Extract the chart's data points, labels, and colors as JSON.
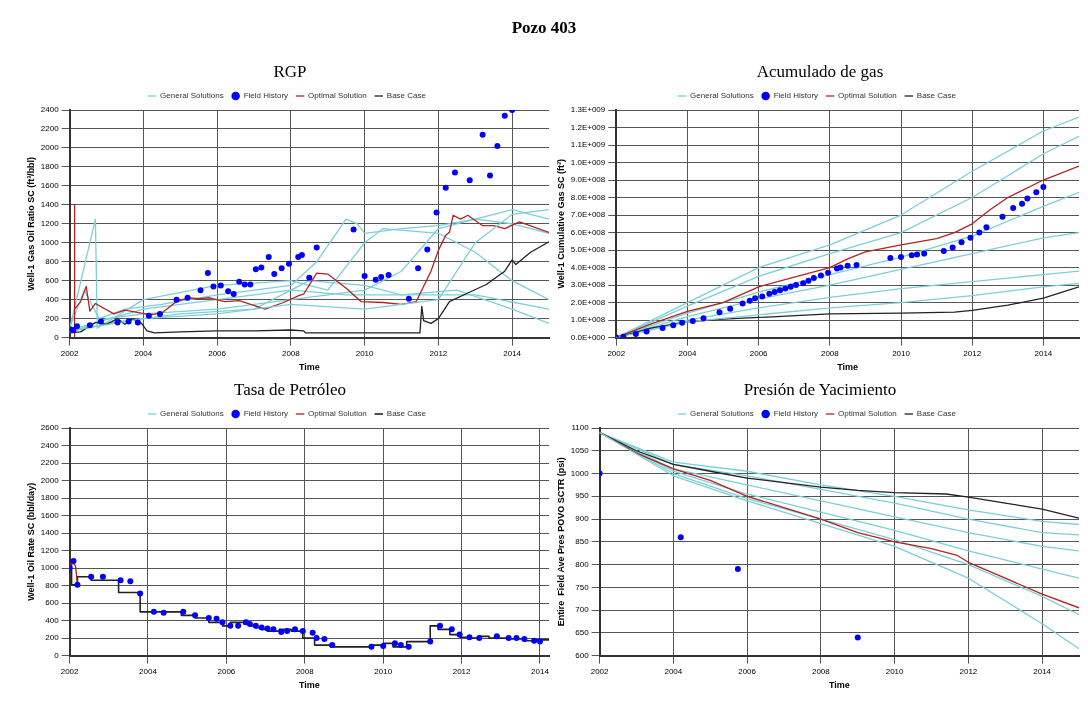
{
  "chart_data": [
    {
      "type": "line",
      "title": "RGP",
      "annotations": [
        "Pozo 403"
      ],
      "xlabel": "Time",
      "ylabel": "Well-1 Gas Oil Ratio SC (ft³/bbl)",
      "xlim": [
        2002,
        2015
      ],
      "xticks": [
        2002,
        2004,
        2006,
        2008,
        2010,
        2012,
        2014
      ],
      "ylim": [
        0,
        2400
      ],
      "yticks": [
        0,
        200,
        400,
        600,
        800,
        1000,
        1200,
        1400,
        1600,
        1800,
        2000,
        2200,
        2400
      ],
      "grid": true,
      "legend": "top",
      "series": [
        {
          "name": "General Solutions",
          "color": "#7ccfd8",
          "x": [
            2002,
            2004,
            2006,
            2008,
            2010,
            2012,
            2013,
            2014,
            2015
          ],
          "values": [
            70,
            200,
            250,
            350,
            300,
            400,
            1000,
            1300,
            1350
          ]
        },
        {
          "name": "Field History",
          "type": "scatter",
          "marker": "circle",
          "color": "#0000ff",
          "x": [
            2002,
            2002.1,
            2002.2,
            2002.55,
            2002.85,
            2003.3,
            2003.6,
            2003.85,
            2004.15,
            2004.45,
            2004.9,
            2005.2,
            2005.55,
            2005.75,
            2005.9,
            2006.1,
            2006.3,
            2006.45,
            2006.6,
            2006.75,
            2006.9,
            2007.05,
            2007.2,
            2007.4,
            2007.55,
            2007.75,
            2007.95,
            2008.2,
            2008.3,
            2008.5,
            2008.7,
            2009.7,
            2010,
            2010.3,
            2010.45,
            2010.65,
            2011.2,
            2011.45,
            2011.7,
            2011.95,
            2012.2,
            2012.45,
            2012.85,
            2013.2,
            2013.4,
            2013.6,
            2013.8,
            2014
          ],
          "values": [
            90,
            80,
            120,
            130,
            170,
            160,
            170,
            160,
            230,
            250,
            400,
            420,
            500,
            680,
            540,
            550,
            490,
            460,
            590,
            560,
            560,
            720,
            740,
            850,
            670,
            730,
            780,
            850,
            870,
            630,
            950,
            1140,
            650,
            610,
            640,
            660,
            410,
            730,
            930,
            1320,
            1580,
            1740,
            1660,
            2140,
            1710,
            2020,
            2340,
            2400
          ]
        },
        {
          "name": "Optimal Solution",
          "color": "#b22222",
          "x": [
            2002.12,
            2002.13,
            2002.14,
            2002.3,
            2002.45,
            2002.55,
            2002.7,
            2003.2,
            2003.5,
            2004.2,
            2004.5,
            2004.9,
            2005.2,
            2005.5,
            2005.8,
            2006.2,
            2006.6,
            2007.3,
            2007.8,
            2008.2,
            2008.35,
            2008.7,
            2009,
            2009.5,
            2009.9,
            2010.5,
            2011,
            2011.4,
            2011.8,
            2012,
            2012.2,
            2012.3,
            2012.4,
            2012.6,
            2012.8,
            2013.2,
            2013.5,
            2013.8,
            2014.2,
            2015
          ],
          "values": [
            0,
            1400,
            300,
            380,
            540,
            280,
            360,
            250,
            290,
            240,
            260,
            380,
            420,
            410,
            420,
            380,
            390,
            300,
            370,
            440,
            460,
            680,
            670,
            520,
            380,
            370,
            350,
            380,
            700,
            920,
            1080,
            1110,
            1290,
            1250,
            1290,
            1180,
            1180,
            1150,
            1220,
            1110
          ]
        },
        {
          "name": "Base Case",
          "color": "#222222",
          "x": [
            2002,
            2002.3,
            2002.7,
            2003,
            2003.3,
            2003.5,
            2003.7,
            2003.95,
            2004.1,
            2004.3,
            2005,
            2006,
            2007,
            2008,
            2008.35,
            2008.4,
            2010,
            2011.5,
            2011.55,
            2011.6,
            2011.8,
            2012,
            2012.3,
            2012.8,
            2013.3,
            2013.8,
            2014,
            2014.1,
            2014.5,
            2015
          ],
          "values": [
            50,
            60,
            160,
            140,
            200,
            140,
            200,
            150,
            70,
            50,
            60,
            70,
            70,
            80,
            70,
            50,
            50,
            50,
            330,
            180,
            150,
            200,
            380,
            470,
            560,
            700,
            820,
            770,
            900,
            1010
          ]
        },
        {
          "color": "#7ccfd8",
          "x": [
            2002,
            2002.4,
            2002.8,
            2003.5,
            2004.5,
            2006,
            2008,
            2008.7,
            2009.5,
            2009.8,
            2010,
            2011,
            2012,
            2013,
            2014,
            2015
          ],
          "values": [
            100,
            500,
            200,
            300,
            350,
            450,
            550,
            800,
            1250,
            1200,
            1100,
            1150,
            1180,
            1250,
            1350,
            1250
          ]
        },
        {
          "color": "#7ccfd8",
          "x": [
            2002,
            2003,
            2004,
            2006,
            2008,
            2010,
            2011,
            2012,
            2013,
            2014,
            2015
          ],
          "values": [
            50,
            200,
            250,
            300,
            400,
            500,
            700,
            1150,
            1250,
            1200,
            1100
          ]
        },
        {
          "color": "#7ccfd8",
          "x": [
            2002,
            2004,
            2006,
            2008,
            2009.5,
            2011,
            2012.5,
            2014,
            2015
          ],
          "values": [
            80,
            300,
            400,
            500,
            450,
            450,
            500,
            300,
            150
          ]
        },
        {
          "color": "#7ccfd8",
          "x": [
            2002,
            2003,
            2005,
            2007,
            2008.5,
            2010,
            2011,
            2013,
            2015
          ],
          "values": [
            60,
            150,
            250,
            300,
            600,
            550,
            450,
            450,
            300
          ]
        },
        {
          "color": "#7ccfd8",
          "x": [
            2002,
            2002.7,
            2002.75,
            2004,
            2006,
            2008,
            2009,
            2010,
            2010.5,
            2012,
            2013,
            2014,
            2015
          ],
          "values": [
            90,
            1250,
            100,
            400,
            550,
            600,
            500,
            1000,
            1150,
            1100,
            900,
            600,
            400
          ]
        }
      ]
    },
    {
      "type": "line",
      "title": "Acumulado de gas",
      "xlabel": "Time",
      "ylabel": "Well-1 Cumulative Gas SC (ft³)",
      "xlim": [
        2002,
        2015
      ],
      "xticks": [
        2002,
        2004,
        2006,
        2008,
        2010,
        2012,
        2014
      ],
      "ylim": [
        0,
        1300000000
      ],
      "yticks": [
        {
          "value": 0,
          "label": "0.0E+000"
        },
        {
          "value": 100000000,
          "label": "1.0E+008"
        },
        {
          "value": 200000000,
          "label": "2.0E+008"
        },
        {
          "value": 300000000,
          "label": "3.0E+008"
        },
        {
          "value": 400000000,
          "label": "4.0E+008"
        },
        {
          "value": 500000000,
          "label": "5.0E+008"
        },
        {
          "value": 600000000,
          "label": "6.0E+008"
        },
        {
          "value": 700000000,
          "label": "7.0E+008"
        },
        {
          "value": 800000000,
          "label": "8.0E+008"
        },
        {
          "value": 900000000,
          "label": "9.0E+008"
        },
        {
          "value": 1000000000,
          "label": "1.0E+009"
        },
        {
          "value": 1100000000,
          "label": "1.1E+009"
        },
        {
          "value": 1200000000,
          "label": "1.2E+009"
        },
        {
          "value": 1300000000,
          "label": "1.3E+009"
        }
      ],
      "grid": true,
      "legend": "top",
      "series": [
        {
          "name": "General Solutions",
          "color": "#7ccfd8",
          "x": [
            2002,
            2004,
            2006,
            2008,
            2010,
            2012,
            2014,
            2015
          ],
          "values": [
            0,
            90000000,
            130000000,
            170000000,
            200000000,
            240000000,
            290000000,
            310000000
          ]
        },
        {
          "name": "Field History",
          "type": "scatter",
          "marker": "circle",
          "color": "#0000ff",
          "x": [
            2002,
            2002.2,
            2002.55,
            2002.85,
            2003.3,
            2003.6,
            2003.85,
            2004.15,
            2004.45,
            2004.9,
            2005.2,
            2005.55,
            2005.75,
            2005.9,
            2006.1,
            2006.3,
            2006.45,
            2006.6,
            2006.75,
            2006.9,
            2007.05,
            2007.25,
            2007.4,
            2007.55,
            2007.75,
            2007.95,
            2008.2,
            2008.3,
            2008.5,
            2008.75,
            2009.7,
            2010,
            2010.3,
            2010.45,
            2010.65,
            2011.2,
            2011.45,
            2011.7,
            2011.95,
            2012.2,
            2012.4,
            2012.85,
            2013.15,
            2013.4,
            2013.55,
            2013.8,
            2014
          ],
          "values": [
            0,
            5000000,
            20000000,
            35000000,
            55000000,
            70000000,
            85000000,
            95000000,
            110000000,
            145000000,
            165000000,
            195000000,
            210000000,
            225000000,
            235000000,
            250000000,
            260000000,
            270000000,
            280000000,
            290000000,
            300000000,
            310000000,
            325000000,
            340000000,
            355000000,
            370000000,
            395000000,
            400000000,
            410000000,
            415000000,
            455000000,
            460000000,
            470000000,
            475000000,
            480000000,
            495000000,
            515000000,
            545000000,
            570000000,
            600000000,
            630000000,
            690000000,
            740000000,
            765000000,
            795000000,
            830000000,
            860000000
          ]
        },
        {
          "name": "Optimal Solution",
          "color": "#b22222",
          "x": [
            2002,
            2002.5,
            2003,
            2004,
            2005,
            2006,
            2007,
            2008,
            2008.5,
            2009,
            2010,
            2011,
            2011.5,
            2012,
            2012.5,
            2013,
            2014,
            2015
          ],
          "values": [
            0,
            40000000,
            80000000,
            150000000,
            200000000,
            290000000,
            345000000,
            400000000,
            450000000,
            490000000,
            530000000,
            565000000,
            600000000,
            650000000,
            730000000,
            800000000,
            900000000,
            980000000
          ]
        },
        {
          "name": "Base Case",
          "color": "#222222",
          "x": [
            2002,
            2003,
            2004,
            2005,
            2006,
            2008,
            2010,
            2011.5,
            2012,
            2013,
            2014,
            2015
          ],
          "values": [
            0,
            55000000,
            90000000,
            105000000,
            115000000,
            135000000,
            140000000,
            145000000,
            155000000,
            185000000,
            225000000,
            290000000
          ]
        },
        {
          "color": "#7ccfd8",
          "x": [
            2002,
            2004,
            2006,
            2008,
            2010,
            2012,
            2014,
            2015
          ],
          "values": [
            0,
            200000000,
            400000000,
            530000000,
            700000000,
            950000000,
            1180000000,
            1260000000
          ]
        },
        {
          "color": "#7ccfd8",
          "x": [
            2002,
            2004,
            2006,
            2008,
            2010,
            2012,
            2014,
            2015
          ],
          "values": [
            0,
            180000000,
            350000000,
            480000000,
            600000000,
            800000000,
            1050000000,
            1150000000
          ]
        },
        {
          "color": "#7ccfd8",
          "x": [
            2002,
            2004,
            2006,
            2008,
            2010,
            2012,
            2014,
            2015
          ],
          "values": [
            0,
            140000000,
            260000000,
            360000000,
            460000000,
            580000000,
            750000000,
            830000000
          ]
        },
        {
          "color": "#7ccfd8",
          "x": [
            2002,
            2004,
            2006,
            2008,
            2010,
            2012,
            2014,
            2015
          ],
          "values": [
            0,
            120000000,
            220000000,
            300000000,
            390000000,
            480000000,
            570000000,
            600000000
          ]
        },
        {
          "color": "#7ccfd8",
          "x": [
            2002,
            2004,
            2006,
            2008,
            2010,
            2012,
            2014,
            2015
          ],
          "values": [
            0,
            100000000,
            170000000,
            230000000,
            280000000,
            320000000,
            360000000,
            380000000
          ]
        }
      ]
    },
    {
      "type": "line",
      "title": "Tasa de Petróleo",
      "xlabel": "Time",
      "ylabel": "Well-1 Oil Rate SC (bbl/day)",
      "xlim": [
        2002,
        2014.23
      ],
      "xticks": [
        2002,
        2004,
        2006,
        2008,
        2010,
        2012,
        2014
      ],
      "ylim": [
        0,
        2600
      ],
      "yticks": [
        0,
        200,
        400,
        600,
        800,
        1000,
        1200,
        1400,
        1600,
        1800,
        2000,
        2200,
        2400,
        2600
      ],
      "grid": true,
      "legend": "top",
      "series": [
        {
          "name": "General Solutions",
          "color": "#7ccfd8"
        },
        {
          "name": "Field History",
          "type": "scatter",
          "marker": "circle",
          "color": "#0000ff",
          "x": [
            2002,
            2002.1,
            2002.2,
            2002.55,
            2002.85,
            2003.3,
            2003.55,
            2003.8,
            2004.15,
            2004.4,
            2004.9,
            2005.2,
            2005.55,
            2005.75,
            2005.9,
            2006.1,
            2006.3,
            2006.5,
            2006.6,
            2006.75,
            2006.9,
            2007.05,
            2007.2,
            2007.4,
            2007.55,
            2007.75,
            2007.95,
            2008.2,
            2008.3,
            2008.5,
            2008.7,
            2009.7,
            2010,
            2010.3,
            2010.45,
            2010.65,
            2011.2,
            2011.45,
            2011.75,
            2011.95,
            2012.2,
            2012.45,
            2012.9,
            2013.2,
            2013.4,
            2013.6,
            2013.85,
            2014
          ],
          "values": [
            1000,
            1080,
            810,
            900,
            900,
            860,
            850,
            710,
            500,
            490,
            500,
            460,
            430,
            420,
            380,
            340,
            340,
            380,
            360,
            340,
            320,
            310,
            300,
            270,
            280,
            300,
            280,
            260,
            200,
            190,
            120,
            100,
            110,
            140,
            120,
            100,
            160,
            340,
            300,
            240,
            210,
            200,
            220,
            200,
            200,
            190,
            170,
            160
          ]
        },
        {
          "name": "Optimal Solution",
          "color": "#b22222",
          "x": [
            2002,
            2002.05,
            2002.15,
            2002.2
          ],
          "values": [
            1000,
            1070,
            1030,
            810
          ]
        },
        {
          "name": "Base Case",
          "type": "step",
          "color": "#222222",
          "x": [
            2002,
            2002.05,
            2002.2,
            2002.55,
            2003.25,
            2003.8,
            2004.1,
            2004.85,
            2005.2,
            2005.55,
            2005.9,
            2006.1,
            2006.45,
            2006.6,
            2006.75,
            2006.9,
            2007.05,
            2007.35,
            2007.65,
            2007.95,
            2008.25,
            2008.65,
            2009.7,
            2010,
            2010.25,
            2010.6,
            2011.2,
            2011.4,
            2011.7,
            2011.95,
            2012.2,
            2012.45,
            2012.7,
            2013.15,
            2013.6,
            2013.85,
            2014.1,
            2014.23
          ],
          "values": [
            1000,
            1080,
            810,
            900,
            860,
            720,
            500,
            500,
            460,
            430,
            380,
            340,
            380,
            360,
            340,
            320,
            300,
            280,
            300,
            280,
            200,
            120,
            100,
            120,
            140,
            100,
            160,
            340,
            300,
            240,
            210,
            200,
            220,
            200,
            190,
            170,
            180,
            180
          ]
        }
      ]
    },
    {
      "type": "line",
      "title": "Presión de Yacimiento",
      "xlabel": "Time",
      "ylabel": "Entire  Field Ave Pres POVO SCTR (psi)",
      "xlim": [
        2002,
        2015
      ],
      "xticks": [
        2002,
        2004,
        2006,
        2008,
        2010,
        2012,
        2014
      ],
      "ylim": [
        600,
        1100
      ],
      "yticks": [
        600,
        650,
        700,
        750,
        800,
        850,
        900,
        950,
        1000,
        1050,
        1100
      ],
      "grid": true,
      "legend": "top",
      "series": [
        {
          "name": "General Solutions",
          "color": "#7ccfd8",
          "x": [
            2002,
            2004,
            2006,
            2008,
            2010,
            2012,
            2014,
            2015
          ],
          "values": [
            1090,
            995,
            940,
            890,
            840,
            770,
            670,
            615
          ]
        },
        {
          "name": "Field History",
          "type": "scatter",
          "marker": "circle",
          "color": "#0000ff",
          "x": [
            2002,
            2004.2,
            2005.75,
            2009
          ],
          "values": [
            1000,
            860,
            790,
            640
          ]
        },
        {
          "name": "Optimal Solution",
          "color": "#b22222",
          "x": [
            2002,
            2003,
            2004,
            2005,
            2006,
            2007,
            2008,
            2009,
            2010,
            2011,
            2011.7,
            2012,
            2013,
            2014,
            2015
          ],
          "values": [
            1090,
            1045,
            1010,
            985,
            950,
            925,
            900,
            870,
            850,
            835,
            820,
            805,
            770,
            735,
            705
          ]
        },
        {
          "name": "Base Case",
          "color": "#222222",
          "x": [
            2002,
            2003,
            2004,
            2005,
            2006,
            2007,
            2008,
            2009,
            2010,
            2011.4,
            2012,
            2013,
            2014,
            2015
          ],
          "values": [
            1090,
            1050,
            1020,
            1005,
            990,
            980,
            970,
            963,
            958,
            955,
            948,
            935,
            922,
            902
          ]
        },
        {
          "color": "#7ccfd8",
          "x": [
            2002,
            2004,
            2006,
            2008,
            2010,
            2012,
            2014,
            2015
          ],
          "values": [
            1090,
            1025,
            1005,
            975,
            950,
            920,
            895,
            888
          ]
        },
        {
          "color": "#7ccfd8",
          "x": [
            2002,
            2004,
            2006,
            2008,
            2010,
            2012,
            2014,
            2015
          ],
          "values": [
            1090,
            1020,
            995,
            965,
            935,
            900,
            870,
            865
          ]
        },
        {
          "color": "#7ccfd8",
          "x": [
            2002,
            2004,
            2006,
            2008,
            2010,
            2012,
            2014,
            2015
          ],
          "values": [
            1090,
            1010,
            975,
            940,
            905,
            870,
            840,
            830
          ]
        },
        {
          "color": "#7ccfd8",
          "x": [
            2002,
            2004,
            2006,
            2008,
            2010,
            2012,
            2014,
            2015
          ],
          "values": [
            1090,
            1005,
            955,
            915,
            875,
            830,
            790,
            770
          ]
        },
        {
          "color": "#7ccfd8",
          "x": [
            2002,
            2004,
            2006,
            2008,
            2010,
            2012,
            2014,
            2015
          ],
          "values": [
            1090,
            1000,
            945,
            900,
            855,
            800,
            730,
            690
          ]
        }
      ]
    }
  ]
}
